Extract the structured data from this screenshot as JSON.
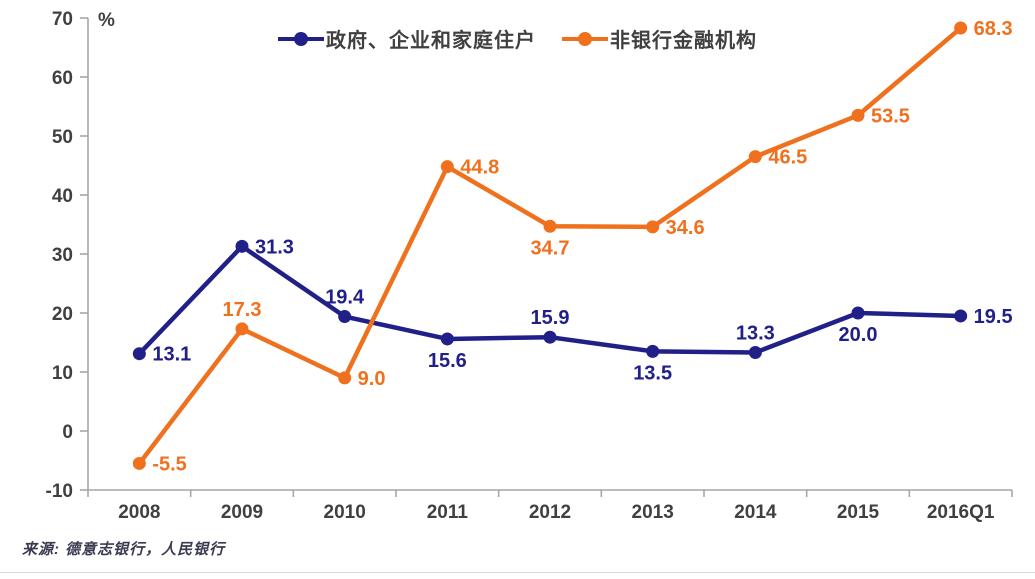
{
  "chart_data": {
    "type": "line",
    "title": "",
    "unit_label": "%",
    "categories": [
      "2008",
      "2009",
      "2010",
      "2011",
      "2012",
      "2013",
      "2014",
      "2015",
      "2016Q1"
    ],
    "series": [
      {
        "name": "政府、企业和家庭住户",
        "color": "#212088",
        "values": [
          13.1,
          31.3,
          19.4,
          15.6,
          15.9,
          13.5,
          13.3,
          20.0,
          19.5
        ],
        "label_positions": [
          "right",
          "right",
          "above",
          "below",
          "above",
          "below",
          "above",
          "below",
          "right"
        ]
      },
      {
        "name": "非银行金融机构",
        "color": "#f0711d",
        "values": [
          -5.5,
          17.3,
          9.0,
          44.8,
          34.7,
          34.6,
          46.5,
          53.5,
          68.3
        ],
        "label_positions": [
          "right",
          "above",
          "right",
          "right",
          "below",
          "right",
          "right",
          "right",
          "right"
        ]
      }
    ],
    "ylim": [
      -10,
      70
    ],
    "ytick_step": 10,
    "grid": false,
    "legend_position": "top-center",
    "axis_color": "#a6a6a6",
    "tick_text_color": "#404040",
    "source": "来源: 德意志银行，人民银行"
  }
}
